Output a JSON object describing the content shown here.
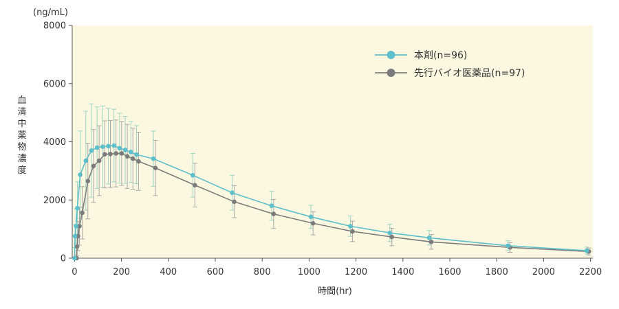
{
  "chart_data": {
    "type": "line",
    "title": "",
    "unit_label": "(ng/mL)",
    "xlabel": "時間(hr)",
    "ylabel": "血清中薬物濃度",
    "xlim": [
      -10,
      2210
    ],
    "ylim": [
      0,
      8000
    ],
    "xticks": [
      0,
      200,
      400,
      600,
      800,
      1000,
      1200,
      1400,
      1600,
      1800,
      2000,
      2200
    ],
    "yticks": [
      0,
      2000,
      4000,
      6000,
      8000
    ],
    "grid": false,
    "legend_position": "top-right",
    "plot_background": "#fbf7e0",
    "series": [
      {
        "name": "本剤(n=96)",
        "color": "#5dbfca",
        "error_color": "#9fd6c4",
        "x": [
          0,
          2,
          6,
          12,
          24,
          48,
          72,
          96,
          120,
          144,
          168,
          192,
          216,
          240,
          264,
          336,
          504,
          672,
          840,
          1008,
          1176,
          1344,
          1512,
          1848,
          2184
        ],
        "y": [
          0,
          760,
          1100,
          1720,
          2870,
          3350,
          3700,
          3800,
          3830,
          3850,
          3870,
          3780,
          3720,
          3650,
          3560,
          3420,
          2850,
          2250,
          1800,
          1420,
          1100,
          870,
          700,
          430,
          260
        ],
        "sd": [
          0,
          400,
          600,
          900,
          1500,
          1700,
          1600,
          1400,
          1400,
          1300,
          1250,
          1200,
          1150,
          1050,
          1000,
          950,
          750,
          600,
          500,
          400,
          350,
          300,
          250,
          170,
          120
        ]
      },
      {
        "name": "先行バイオ医薬品(n=97)",
        "color": "#7c7c7c",
        "error_color": "#a8a8a8",
        "x": [
          0,
          2,
          6,
          12,
          24,
          48,
          72,
          96,
          120,
          144,
          168,
          192,
          216,
          240,
          264,
          336,
          504,
          672,
          840,
          1008,
          1176,
          1344,
          1512,
          1848,
          2184
        ],
        "y": [
          0,
          400,
          760,
          1100,
          1560,
          2650,
          3170,
          3350,
          3570,
          3580,
          3600,
          3600,
          3500,
          3420,
          3330,
          3100,
          2510,
          1940,
          1520,
          1200,
          920,
          730,
          560,
          370,
          230
        ],
        "sd": [
          0,
          300,
          500,
          650,
          900,
          1300,
          1250,
          1200,
          1150,
          1150,
          1150,
          1100,
          1100,
          1050,
          1000,
          950,
          750,
          550,
          500,
          400,
          350,
          300,
          250,
          170,
          120
        ]
      }
    ]
  }
}
